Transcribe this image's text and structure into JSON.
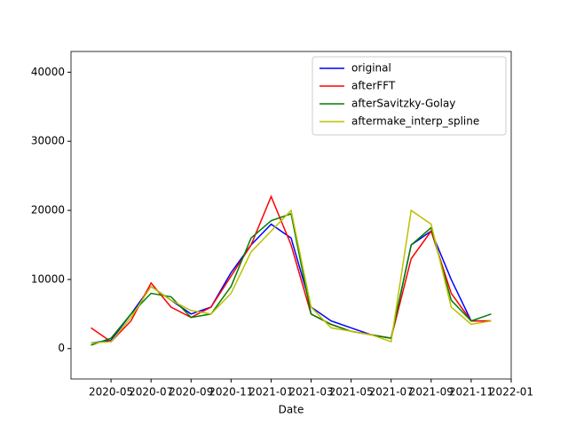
{
  "chart_data": {
    "type": "line",
    "x_label": "Date",
    "x": [
      "2020-04",
      "2020-05",
      "2020-06",
      "2020-07",
      "2020-08",
      "2020-09",
      "2020-10",
      "2020-11",
      "2020-12",
      "2021-01",
      "2021-02",
      "2021-03",
      "2021-04",
      "2021-05",
      "2021-06",
      "2021-07",
      "2021-08",
      "2021-09",
      "2021-10",
      "2021-11",
      "2021-12"
    ],
    "series": [
      {
        "name": "original",
        "color": "#0000ff",
        "values": [
          800,
          1200,
          5000,
          9000,
          7000,
          5000,
          6000,
          11000,
          15000,
          18000,
          16000,
          6000,
          4000,
          3000,
          2000,
          1500,
          15000,
          17000,
          10000,
          4000,
          4000
        ]
      },
      {
        "name": "afterFFT",
        "color": "#ff0000",
        "values": [
          3000,
          1000,
          4000,
          9500,
          6000,
          4500,
          6000,
          10500,
          15000,
          22000,
          15000,
          5000,
          3500,
          2500,
          2000,
          1500,
          13000,
          17000,
          8000,
          4000,
          4000
        ]
      },
      {
        "name": "afterSavitzky-Golay",
        "color": "#008000",
        "values": [
          500,
          1500,
          5000,
          8000,
          7500,
          4500,
          5000,
          9000,
          16000,
          18500,
          19500,
          5000,
          3500,
          2500,
          2000,
          1500,
          15000,
          17500,
          7000,
          4000,
          5000
        ]
      },
      {
        "name": "aftermake_interp_spline",
        "color": "#bfbf00",
        "values": [
          800,
          1000,
          4500,
          9000,
          7000,
          5500,
          5000,
          8000,
          14000,
          17000,
          20000,
          6000,
          3000,
          2500,
          2000,
          1000,
          20000,
          18000,
          6000,
          3500,
          4000
        ]
      }
    ],
    "xlim": [
      "2020-03",
      "2022-01"
    ],
    "xticks": [
      "2020-05",
      "2020-07",
      "2020-09",
      "2020-11",
      "2021-01",
      "2021-03",
      "2021-05",
      "2021-07",
      "2021-09",
      "2021-11",
      "2022-01"
    ],
    "ylim": [
      -4400,
      43000
    ],
    "yticks": [
      0,
      10000,
      20000,
      30000,
      40000
    ],
    "legend": "upper right"
  }
}
